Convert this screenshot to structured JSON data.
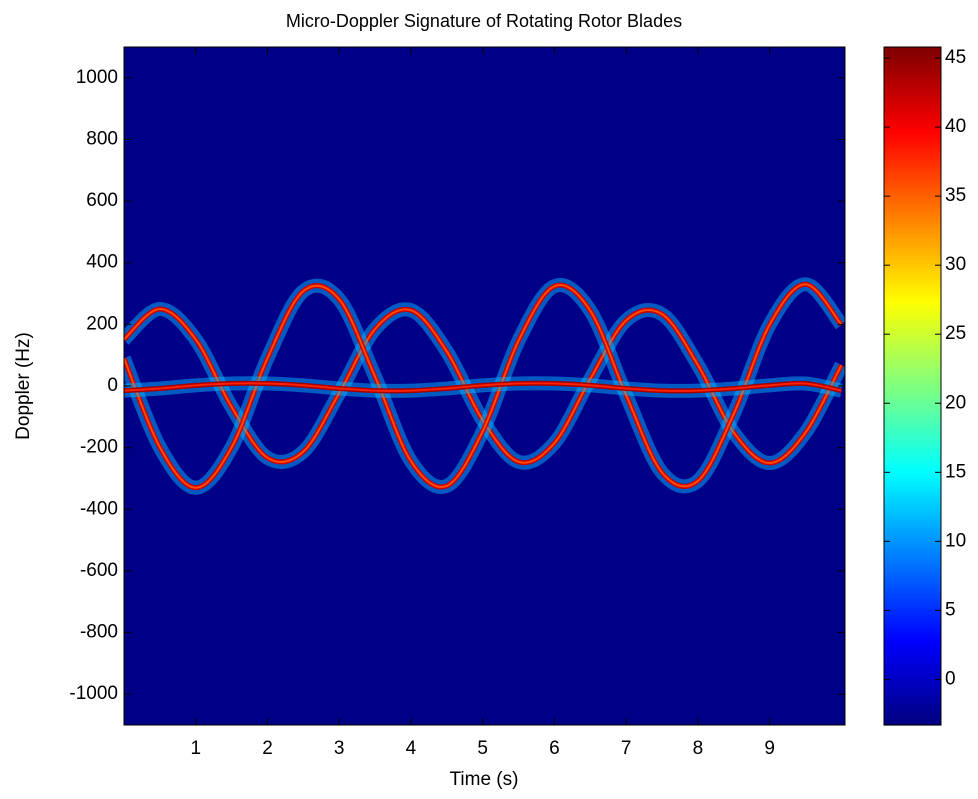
{
  "chart_data": {
    "type": "spectrogram",
    "title": "Micro-Doppler Signature of Rotating Rotor Blades",
    "x_label": "Time (s)",
    "y_label": "Doppler (Hz)",
    "x": [
      0,
      0.5,
      1,
      1.5,
      2,
      2.5,
      3,
      3.5,
      4,
      4.5,
      5,
      5.5,
      6,
      6.5,
      7,
      7.5,
      8,
      8.5,
      9,
      9.5,
      10
    ],
    "background_level": -3,
    "series": [
      {
        "level": 42,
        "values": [
          151,
          250,
          151,
          -68,
          -233,
          -213,
          -23,
          185,
          246,
          112,
          -111,
          -246,
          -185,
          23,
          213,
          233,
          68,
          -151,
          -250,
          -151,
          68
        ]
      },
      {
        "level": 42,
        "values": [
          90,
          -199,
          -330,
          -199,
          90,
          308,
          281,
          30,
          -244,
          -324,
          -147,
          147,
          324,
          244,
          -30,
          -281,
          -308,
          -90,
          199,
          330,
          199
        ]
      },
      {
        "level": 44,
        "values": [
          -15,
          -8,
          2,
          8,
          8,
          2,
          -8,
          -15,
          -15,
          -8,
          2,
          8,
          8,
          2,
          -8,
          -15,
          -15,
          -8,
          2,
          8,
          -15
        ]
      }
    ],
    "xlim": [
      0,
      10.05
    ],
    "ylim": [
      -1100,
      1100
    ],
    "xticks": [
      1,
      2,
      3,
      4,
      5,
      6,
      7,
      8,
      9
    ],
    "yticks": [
      -1000,
      -800,
      -600,
      -400,
      -200,
      0,
      200,
      400,
      600,
      800,
      1000
    ],
    "clim": [
      -3.3,
      45.8
    ],
    "cticks": [
      0,
      5,
      10,
      15,
      20,
      25,
      30,
      35,
      40,
      45
    ]
  }
}
